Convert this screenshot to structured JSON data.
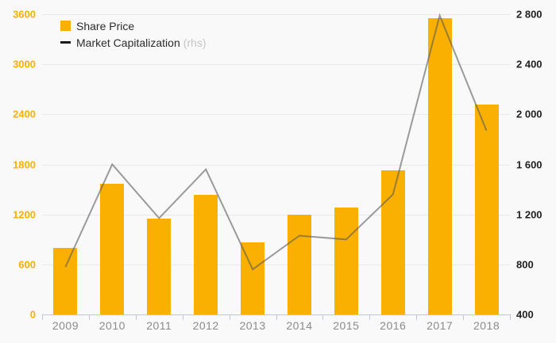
{
  "chart_data": {
    "type": "bar+line",
    "categories": [
      "2009",
      "2010",
      "2011",
      "2012",
      "2013",
      "2014",
      "2015",
      "2016",
      "2017",
      "2018"
    ],
    "series": [
      {
        "name": "Share Price",
        "type": "bar",
        "axis": "left",
        "color": "#F9B000",
        "values": [
          800,
          1570,
          1150,
          1430,
          860,
          1200,
          1280,
          1730,
          3550,
          2520
        ]
      },
      {
        "name": "Market Capitalization",
        "legend_suffix": "(rhs)",
        "type": "line",
        "axis": "right",
        "color": "#5A5A5A",
        "opacity": 0.6,
        "values": [
          780,
          1600,
          1170,
          1560,
          760,
          1030,
          1000,
          1360,
          2790,
          1870
        ]
      }
    ],
    "left_axis": {
      "min": 0,
      "max": 3600,
      "ticks": [
        0,
        600,
        1200,
        1800,
        2400,
        3000,
        3600
      ],
      "tick_labels": [
        "0",
        "600",
        "1200",
        "1800",
        "2400",
        "3000",
        "3600"
      ],
      "label_color": "#F9B000"
    },
    "right_axis": {
      "min": 400,
      "max": 2800,
      "ticks": [
        400,
        800,
        1200,
        1600,
        2000,
        2400,
        2800
      ],
      "tick_labels": [
        "400",
        "800",
        "1 200",
        "1 600",
        "2 000",
        "2 400",
        "2 800"
      ],
      "label_color": "#1f1f1f"
    },
    "grid": true,
    "legend_position": "top-left"
  },
  "colors": {
    "bar": "#F9B000",
    "line_apparent": "#9A9A9A",
    "legend_line_swatch": "#1A1A1A",
    "gridline": "#E9E9E9",
    "axis": "#BFC7D9",
    "x_labels": "#8B8B8B",
    "legend_text": "#2B2B2B",
    "rhs_text": "#C4C4C4",
    "background": "#F9F9F9"
  }
}
